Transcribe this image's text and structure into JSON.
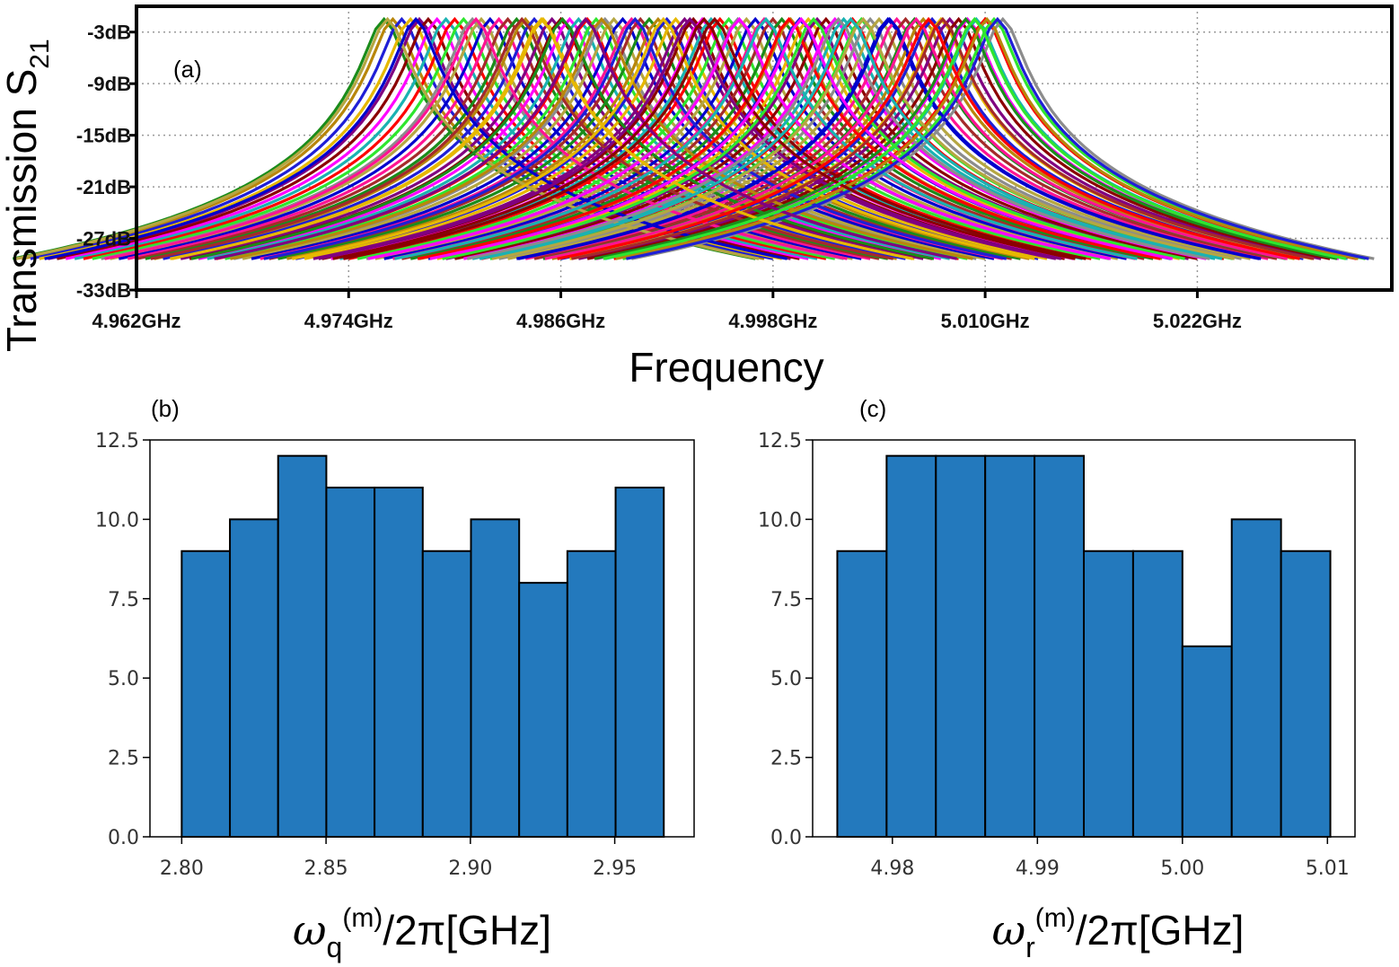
{
  "chart_data": [
    {
      "panel": "(a)",
      "type": "line",
      "xlabel": "Frequency",
      "ylabel": "Transmission S",
      "ylabel_sub": "21",
      "x_ticks": [
        "4.962GHz",
        "4.974GHz",
        "4.986GHz",
        "4.998GHz",
        "5.010GHz",
        "5.022GHz"
      ],
      "y_ticks": [
        "-3dB",
        "-9dB",
        "-15dB",
        "-21dB",
        "-27dB",
        "-33dB"
      ],
      "xlim_ghz": [
        4.962,
        5.033
      ],
      "ylim_db": [
        -33,
        0
      ],
      "grid": true,
      "legend": "none",
      "series_count": 100,
      "peak_db": -1.5,
      "peak_frequencies_ghz": [
        4.976,
        4.9765,
        4.977,
        4.9775,
        4.978,
        4.9785,
        4.979,
        4.9795,
        4.98,
        4.9805,
        4.981,
        4.9815,
        4.982,
        4.9825,
        4.983,
        4.9835,
        4.984,
        4.9845,
        4.985,
        4.9855,
        4.986,
        4.9865,
        4.987,
        4.9875,
        4.988,
        4.9885,
        4.989,
        4.9895,
        4.99,
        4.9905,
        4.991,
        4.9915,
        4.992,
        4.9925,
        4.993,
        4.9935,
        4.994,
        4.9945,
        4.995,
        4.9955,
        4.996,
        4.9965,
        4.997,
        4.9975,
        4.998,
        4.9985,
        4.999,
        4.9995,
        5.0,
        5.0005,
        5.001,
        5.0015,
        5.002,
        5.0025,
        5.003,
        5.0035,
        5.004,
        5.0045,
        5.005,
        5.0055,
        5.006,
        5.0065,
        5.007,
        5.0075,
        5.008,
        5.0085,
        5.009,
        5.0095,
        5.01,
        5.0105,
        5.011,
        4.9762,
        4.9778,
        4.9812,
        4.9838,
        4.9861,
        4.9883,
        4.9902,
        4.9918,
        4.9933,
        4.9947,
        4.9961,
        4.9976,
        4.9989,
        5.0003,
        5.0017,
        5.0031,
        5.0046,
        5.0061,
        5.0076,
        5.0089,
        5.0101,
        5.0107,
        4.9849,
        4.9874,
        4.9941,
        4.9996,
        5.0024,
        5.0068,
        5.0094
      ],
      "colors": [
        "#1a8c1a",
        "#b8860b",
        "#1f1fd6",
        "#e6b800",
        "#800080",
        "#8b0000",
        "#ff00ff",
        "#1ab2b2",
        "#ff0000",
        "#2ee62e",
        "#8c8c8c",
        "#b5a642",
        "#0000cd",
        "#ff1493",
        "#a52a2a"
      ]
    },
    {
      "panel": "(b)",
      "type": "bar",
      "xlabel": "ω",
      "xlabel_sub": "q",
      "xlabel_sup": "(m)",
      "xlabel_tail": "/2π[GHz]",
      "bin_edges": [
        2.8,
        2.8167,
        2.8334,
        2.8501,
        2.8668,
        2.8835,
        2.9002,
        2.9169,
        2.9336,
        2.9503,
        2.967
      ],
      "values": [
        9,
        10,
        12,
        11,
        11,
        9,
        10,
        8,
        9,
        11
      ],
      "xlim": [
        2.789,
        2.9775
      ],
      "ylim": [
        0,
        12.5
      ],
      "x_ticks": [
        "2.80",
        "2.85",
        "2.90",
        "2.95"
      ],
      "x_tick_values": [
        2.8,
        2.85,
        2.9,
        2.95
      ],
      "y_ticks": [
        "0.0",
        "2.5",
        "5.0",
        "7.5",
        "10.0",
        "12.5"
      ],
      "y_tick_values": [
        0,
        2.5,
        5,
        7.5,
        10,
        12.5
      ],
      "bar_color": "#2379bd"
    },
    {
      "panel": "(c)",
      "type": "bar",
      "xlabel": "ω",
      "xlabel_sub": "r",
      "xlabel_sup": "(m)",
      "xlabel_tail": "/2π[GHz]",
      "bin_edges": [
        4.9762,
        4.9796,
        4.983,
        4.9864,
        4.9898,
        4.9932,
        4.9966,
        5.0,
        5.0034,
        5.0068,
        5.0102
      ],
      "values": [
        9,
        12,
        12,
        12,
        12,
        9,
        9,
        6,
        10,
        9
      ],
      "xlim": [
        4.9745,
        5.0119
      ],
      "ylim": [
        0,
        12.5
      ],
      "x_ticks": [
        "4.98",
        "4.99",
        "5.00",
        "5.01"
      ],
      "x_tick_values": [
        4.98,
        4.99,
        5.0,
        5.01
      ],
      "y_ticks": [
        "0.0",
        "2.5",
        "5.0",
        "7.5",
        "10.0",
        "12.5"
      ],
      "y_tick_values": [
        0,
        2.5,
        5,
        7.5,
        10,
        12.5
      ],
      "bar_color": "#2379bd"
    }
  ]
}
